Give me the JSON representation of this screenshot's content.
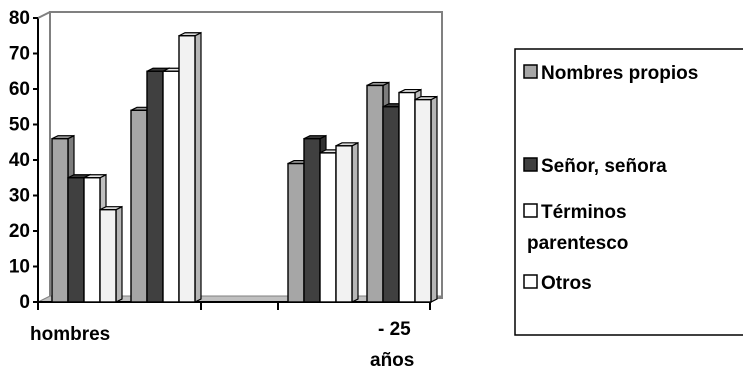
{
  "chart_data": {
    "type": "bar",
    "style": "3d-clustered-columns",
    "groups": [
      {
        "label": "hombres",
        "subgroups": [
          [
            46,
            35,
            35,
            26
          ],
          [
            54,
            65,
            65,
            75
          ]
        ]
      },
      {
        "label": "- 25 años",
        "subgroups": [
          [
            39,
            46,
            42,
            44
          ],
          [
            61,
            55,
            59,
            57
          ]
        ]
      }
    ],
    "series": [
      {
        "name": "Nombres propios",
        "color": "#a6a6a6"
      },
      {
        "name": "Señor, señora",
        "color": "#404040"
      },
      {
        "name": "Términos parentesco",
        "color": "#ffffff"
      },
      {
        "name": "Otros",
        "color": "#f2f2f2"
      }
    ],
    "y_ticks": [
      "0",
      "10",
      "20",
      "30",
      "40",
      "50",
      "60",
      "70",
      "80"
    ],
    "ylim": [
      0,
      80
    ],
    "x_tick_labels": {
      "left": "hombres",
      "right_line1": "- 25",
      "right_line2": "años"
    },
    "legend": {
      "position": "right",
      "entries": [
        {
          "lines": [
            "Nombres propios"
          ],
          "color": "#a6a6a6"
        },
        {
          "lines": [
            "Señor, señora"
          ],
          "color": "#404040"
        },
        {
          "lines": [
            "Términos",
            "parentesco"
          ],
          "color": "#ffffff"
        },
        {
          "lines": [
            "Otros"
          ],
          "color": "#ffffff"
        }
      ]
    },
    "grid": false
  }
}
